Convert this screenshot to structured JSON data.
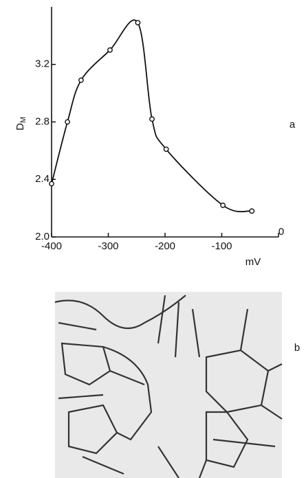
{
  "chart_data": {
    "type": "line",
    "panel_labels": [
      "a",
      "b"
    ],
    "x_label": "mV",
    "y_label": "D",
    "y_label_sub": "M",
    "x": [
      -400,
      -372,
      -348,
      -297,
      -248,
      -223,
      -198,
      -98,
      -47
    ],
    "series": [
      {
        "color": "#111111",
        "values": [
          2.37,
          2.8,
          3.09,
          3.3,
          3.49,
          2.82,
          2.61,
          2.22,
          2.18
        ]
      }
    ],
    "xlim": [
      -400,
      0
    ],
    "xticks": [
      -400,
      -300,
      -200,
      -100,
      0
    ],
    "ylim": [
      2.0,
      3.6
    ],
    "yticks": [
      {
        "value": 2,
        "label": "2.0"
      },
      2.4,
      2.8,
      3.2
    ]
  }
}
